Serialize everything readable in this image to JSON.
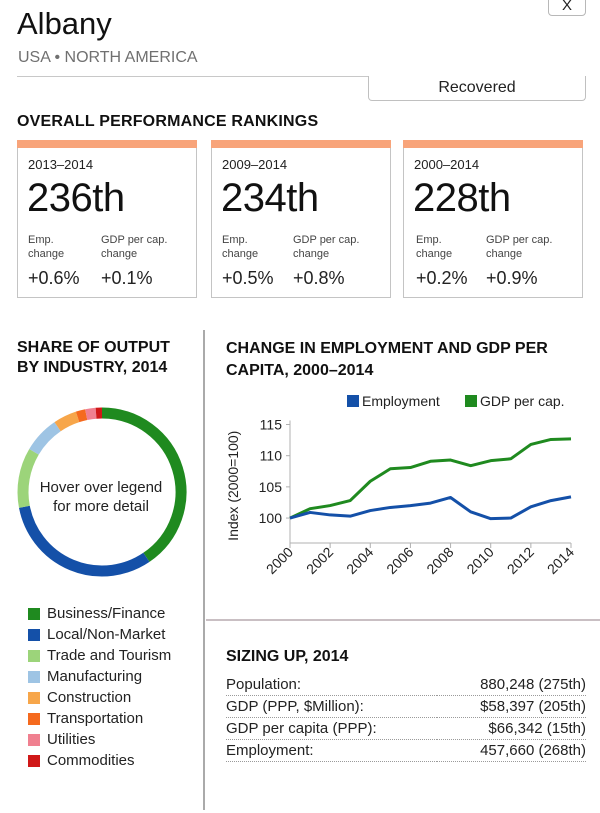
{
  "header": {
    "close_label": "X",
    "city": "Albany",
    "region": "USA • NORTH AMERICA",
    "status": "Recovered"
  },
  "rankings": {
    "title": "OVERALL PERFORMANCE RANKINGS",
    "accent_color": "#f8a47a",
    "emp_label": "Emp. change",
    "gdp_label": "GDP per cap. change",
    "cards": [
      {
        "period": "2013–2014",
        "rank": "236th",
        "emp_change": "+0.6%",
        "gdp_change": "+0.1%"
      },
      {
        "period": "2009–2014",
        "rank": "234th",
        "emp_change": "+0.5%",
        "gdp_change": "+0.8%"
      },
      {
        "period": "2000–2014",
        "rank": "228th",
        "emp_change": "+0.2%",
        "gdp_change": "+0.9%"
      }
    ]
  },
  "share": {
    "title_line1": "SHARE OF OUTPUT",
    "title_line2": "BY INDUSTRY, 2014",
    "center_line1": "Hover over legend",
    "center_line2": "for more detail"
  },
  "growth": {
    "title_line1": "CHANGE IN EMPLOYMENT AND GDP PER",
    "title_line2": "CAPITA, 2000–2014"
  },
  "sizing": {
    "title": "SIZING UP, 2014",
    "rows": [
      {
        "label": "Population:",
        "value": "880,248 (275th)"
      },
      {
        "label": "GDP (PPP, $Million):",
        "value": "$58,397 (205th)"
      },
      {
        "label": "GDP per capita (PPP):",
        "value": "$66,342 (15th)"
      },
      {
        "label": "Employment:",
        "value": "457,660 (268th)"
      }
    ]
  },
  "chart_data": [
    {
      "type": "pie",
      "title": "SHARE OF OUTPUT BY INDUSTRY, 2014",
      "donut": true,
      "start_angle_deg": 0,
      "direction": "clockwise",
      "legend_position": "bottom",
      "slices": [
        {
          "name": "Business/Finance",
          "share_pct": 40.5,
          "color": "#1f8a1f"
        },
        {
          "name": "Local/Non-Market",
          "share_pct": 31.5,
          "color": "#1450a8"
        },
        {
          "name": "Trade and Tourism",
          "share_pct": 11.5,
          "color": "#9cd47a"
        },
        {
          "name": "Manufacturing",
          "share_pct": 7.0,
          "color": "#9ec4e4"
        },
        {
          "name": "Construction",
          "share_pct": 4.5,
          "color": "#f7a64a"
        },
        {
          "name": "Transportation",
          "share_pct": 1.8,
          "color": "#f56a1e"
        },
        {
          "name": "Utilities",
          "share_pct": 2.0,
          "color": "#f08090"
        },
        {
          "name": "Commodities",
          "share_pct": 1.2,
          "color": "#d01818"
        }
      ]
    },
    {
      "type": "line",
      "title": "CHANGE IN EMPLOYMENT AND GDP PER CAPITA, 2000–2014",
      "xlabel": "",
      "ylabel": "Index (2000=100)",
      "x": [
        2000,
        2001,
        2002,
        2003,
        2004,
        2005,
        2006,
        2007,
        2008,
        2009,
        2010,
        2011,
        2012,
        2013,
        2014
      ],
      "xticks": [
        "2000",
        "2002",
        "2004",
        "2006",
        "2008",
        "2010",
        "2012",
        "2014"
      ],
      "yticks": [
        "100",
        "105",
        "110",
        "115"
      ],
      "ylim": [
        96,
        115
      ],
      "xlim": [
        2000,
        2014
      ],
      "grid": false,
      "legend_position": "top-right",
      "series": [
        {
          "name": "Employment",
          "color": "#1450a8",
          "values": [
            100,
            100.9,
            100.5,
            100.3,
            101.2,
            101.7,
            102.0,
            102.4,
            103.3,
            101.0,
            99.9,
            100.0,
            101.8,
            102.8,
            103.4
          ]
        },
        {
          "name": "GDP per cap.",
          "color": "#1f8a1f",
          "values": [
            100,
            101.5,
            102.0,
            102.8,
            105.9,
            107.9,
            108.1,
            109.1,
            109.3,
            108.4,
            109.2,
            109.5,
            111.8,
            112.6,
            112.7
          ]
        }
      ]
    }
  ]
}
